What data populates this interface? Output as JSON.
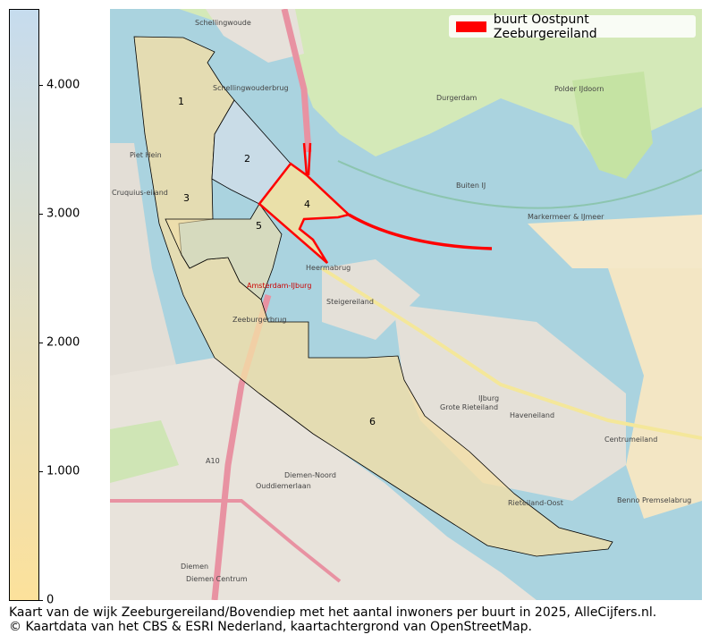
{
  "colorbar": {
    "ticks": [
      "0",
      "1.000",
      "2.000",
      "3.000",
      "4.000"
    ],
    "tick_values": [
      0,
      1000,
      2000,
      3000,
      4000
    ],
    "range": [
      0,
      4590
    ],
    "color_low": "#fce19b",
    "color_high": "#c6dcee"
  },
  "legend": {
    "label": "buurt Oostpunt Zeeburgereiland",
    "color": "#ff0000"
  },
  "regions": [
    {
      "label": "1",
      "shade": "#f3dfa6"
    },
    {
      "label": "2",
      "shade": "#cfdde9"
    },
    {
      "label": "3",
      "shade": "#f3dfa6"
    },
    {
      "label": "4",
      "shade": "#f6e2a0"
    },
    {
      "label": "5",
      "shade": "#f3e0a8"
    },
    {
      "label": "6",
      "shade": "#f5df9f"
    }
  ],
  "places": [
    "Schellingwoude",
    "Schellingwouderbrug",
    "Durgerdam",
    "Polder IJdoorn",
    "Cruquius-eiland",
    "Piet Hein",
    "Markermeer & IJmeer",
    "Buiten IJ",
    "Steigereiland",
    "Heermabrug",
    "Zeeburgerbrug",
    "IJburg",
    "Haveneiland",
    "Grote Rieteiland",
    "Centrumeiland",
    "Rieteiland-Oost",
    "Diemen",
    "Diemen-Noord",
    "Diemen Centrum",
    "Ouddiemerlaan",
    "A10",
    "Benno Premselabrug",
    "Amsterdam-IJburg"
  ],
  "caption": {
    "line1": "Kaart van de wijk Zeeburgereiland/Bovendiep met het aantal inwoners per buurt in 2025, AlleCijfers.nl.",
    "line2": "© Kaartdata van het CBS & ESRI Nederland, kaartachtergrond van OpenStreetMap."
  }
}
